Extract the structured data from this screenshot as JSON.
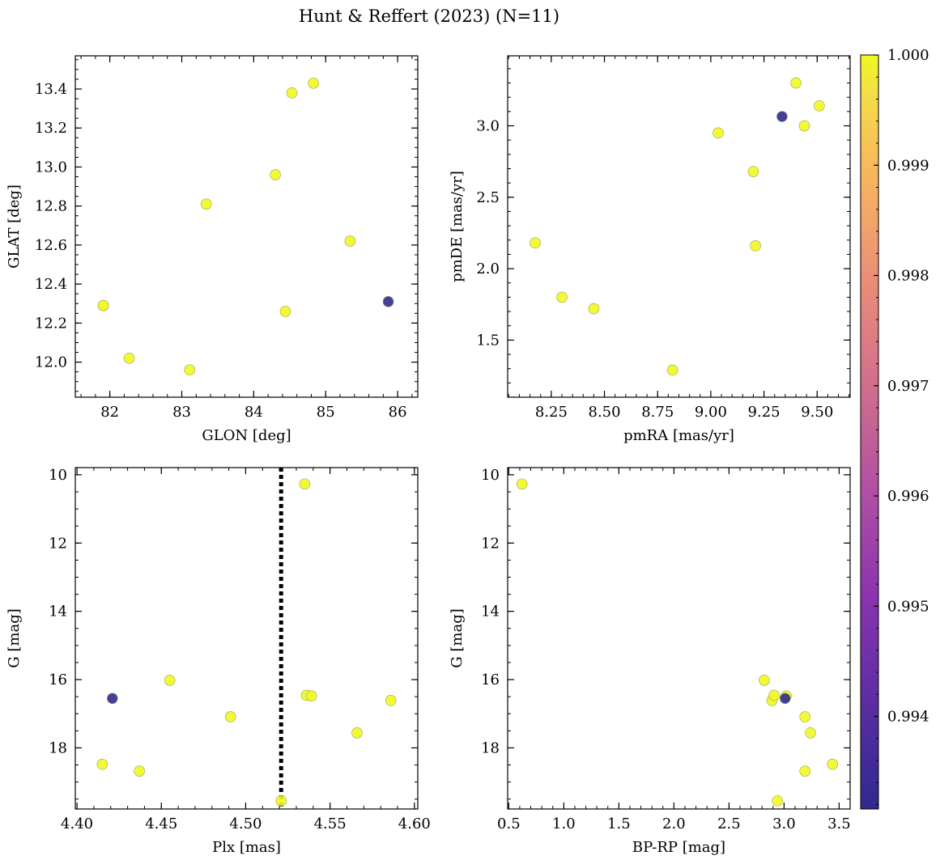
{
  "title": "Hunt & Reffert (2023) (N=11)",
  "colors": {
    "member_high": "#f0f921",
    "member_low": "#2d2b8f",
    "marker_edge": "#a0a050",
    "plx_line": "#000000"
  },
  "colorbar": {
    "colormap": "plasma",
    "vmin": 0.99316,
    "vmax": 1.0,
    "ticks": [
      0.994,
      0.995,
      0.996,
      0.997,
      0.998,
      0.999,
      1.0
    ],
    "tick_labels": [
      "0.994",
      "0.995",
      "0.996",
      "0.997",
      "0.998",
      "0.999",
      "1.000"
    ]
  },
  "chart_data": [
    {
      "type": "scatter",
      "name": "glon-glat",
      "xlabel": "GLON [deg]",
      "ylabel": "GLAT [deg]",
      "xlim": [
        81.52,
        86.28
      ],
      "ylim": [
        11.82,
        13.57
      ],
      "xticks": [
        82,
        83,
        84,
        85,
        86
      ],
      "xtick_labels": [
        "82",
        "83",
        "84",
        "85",
        "86"
      ],
      "yticks": [
        12.0,
        12.2,
        12.4,
        12.6,
        12.8,
        13.0,
        13.2,
        13.4
      ],
      "ytick_labels": [
        "12.0",
        "12.2",
        "12.4",
        "12.6",
        "12.8",
        "13.0",
        "13.2",
        "13.4"
      ],
      "xminor": 0.2,
      "yminor": 0.05,
      "points": [
        {
          "x": 81.91,
          "y": 12.29,
          "c": 1.0
        },
        {
          "x": 81.91,
          "y": 12.29,
          "c": 1.0
        },
        {
          "x": 82.27,
          "y": 12.02,
          "c": 1.0
        },
        {
          "x": 83.11,
          "y": 11.96,
          "c": 1.0
        },
        {
          "x": 83.34,
          "y": 12.81,
          "c": 1.0
        },
        {
          "x": 84.3,
          "y": 12.96,
          "c": 1.0
        },
        {
          "x": 84.44,
          "y": 12.26,
          "c": 1.0
        },
        {
          "x": 84.53,
          "y": 13.38,
          "c": 1.0
        },
        {
          "x": 84.83,
          "y": 13.43,
          "c": 1.0
        },
        {
          "x": 85.34,
          "y": 12.62,
          "c": 1.0
        },
        {
          "x": 85.87,
          "y": 12.31,
          "c": 0.99316
        }
      ]
    },
    {
      "type": "scatter",
      "name": "pmra-pmde",
      "xlabel": "pmRA [mas/yr]",
      "ylabel": "pmDE [mas/yr]",
      "xlim": [
        8.045,
        9.655
      ],
      "ylim": [
        1.1,
        3.49
      ],
      "xticks": [
        8.25,
        8.5,
        8.75,
        9.0,
        9.25,
        9.5
      ],
      "xtick_labels": [
        "8.25",
        "8.50",
        "8.75",
        "9.00",
        "9.25",
        "9.50"
      ],
      "yticks": [
        1.5,
        2.0,
        2.5,
        3.0
      ],
      "ytick_labels": [
        "1.5",
        "2.0",
        "2.5",
        "3.0"
      ],
      "xminor": 0.05,
      "yminor": 0.1,
      "points": [
        {
          "x": 8.175,
          "y": 2.18,
          "c": 1.0
        },
        {
          "x": 8.3,
          "y": 1.8,
          "c": 1.0
        },
        {
          "x": 8.45,
          "y": 1.72,
          "c": 1.0
        },
        {
          "x": 8.82,
          "y": 1.29,
          "c": 1.0
        },
        {
          "x": 9.035,
          "y": 2.95,
          "c": 1.0
        },
        {
          "x": 9.2,
          "y": 2.68,
          "c": 1.0
        },
        {
          "x": 9.21,
          "y": 2.16,
          "c": 1.0
        },
        {
          "x": 9.4,
          "y": 3.3,
          "c": 1.0
        },
        {
          "x": 9.44,
          "y": 3.0,
          "c": 1.0
        },
        {
          "x": 9.51,
          "y": 3.14,
          "c": 1.0
        },
        {
          "x": 9.335,
          "y": 3.065,
          "c": 0.99316
        }
      ]
    },
    {
      "type": "scatter",
      "name": "plx-g",
      "xlabel": "Plx [mas]",
      "ylabel": "G [mag]",
      "xlim": [
        4.399,
        4.602
      ],
      "ylim": [
        19.79,
        9.79
      ],
      "xticks": [
        4.4,
        4.45,
        4.5,
        4.55,
        4.6
      ],
      "xtick_labels": [
        "4.40",
        "4.45",
        "4.50",
        "4.55",
        "4.60"
      ],
      "yticks": [
        10,
        12,
        14,
        16,
        18
      ],
      "ytick_labels": [
        "10",
        "12",
        "14",
        "16",
        "18"
      ],
      "xminor": 0.01,
      "yminor": 0.5,
      "vline": 4.521,
      "points": [
        {
          "x": 4.415,
          "y": 18.48,
          "c": 1.0
        },
        {
          "x": 4.437,
          "y": 18.68,
          "c": 1.0
        },
        {
          "x": 4.455,
          "y": 16.02,
          "c": 1.0
        },
        {
          "x": 4.491,
          "y": 17.09,
          "c": 1.0
        },
        {
          "x": 4.521,
          "y": 19.55,
          "c": 1.0
        },
        {
          "x": 4.535,
          "y": 10.27,
          "c": 1.0
        },
        {
          "x": 4.536,
          "y": 16.46,
          "c": 1.0
        },
        {
          "x": 4.539,
          "y": 16.48,
          "c": 1.0
        },
        {
          "x": 4.566,
          "y": 17.56,
          "c": 1.0
        },
        {
          "x": 4.586,
          "y": 16.61,
          "c": 1.0
        },
        {
          "x": 4.421,
          "y": 16.55,
          "c": 0.99316
        }
      ]
    },
    {
      "type": "scatter",
      "name": "bprp-g",
      "xlabel": "BP-RP [mag]",
      "ylabel": "G [mag]",
      "xlim": [
        0.49,
        3.6
      ],
      "ylim": [
        19.79,
        9.79
      ],
      "xticks": [
        0.5,
        1.0,
        1.5,
        2.0,
        2.5,
        3.0,
        3.5
      ],
      "xtick_labels": [
        "0.5",
        "1.0",
        "1.5",
        "2.0",
        "2.5",
        "3.0",
        "3.5"
      ],
      "yticks": [
        10,
        12,
        14,
        16,
        18
      ],
      "ytick_labels": [
        "10",
        "12",
        "14",
        "16",
        "18"
      ],
      "xminor": 0.1,
      "yminor": 0.5,
      "points": [
        {
          "x": 0.62,
          "y": 10.27,
          "c": 1.0
        },
        {
          "x": 2.82,
          "y": 16.02,
          "c": 1.0
        },
        {
          "x": 2.89,
          "y": 16.61,
          "c": 1.0
        },
        {
          "x": 2.91,
          "y": 16.46,
          "c": 1.0
        },
        {
          "x": 3.02,
          "y": 16.48,
          "c": 1.0
        },
        {
          "x": 3.19,
          "y": 17.09,
          "c": 1.0
        },
        {
          "x": 3.24,
          "y": 17.56,
          "c": 1.0
        },
        {
          "x": 3.44,
          "y": 18.48,
          "c": 1.0
        },
        {
          "x": 3.19,
          "y": 18.68,
          "c": 1.0
        },
        {
          "x": 2.94,
          "y": 19.55,
          "c": 1.0
        },
        {
          "x": 3.01,
          "y": 16.55,
          "c": 0.99316
        }
      ]
    }
  ]
}
